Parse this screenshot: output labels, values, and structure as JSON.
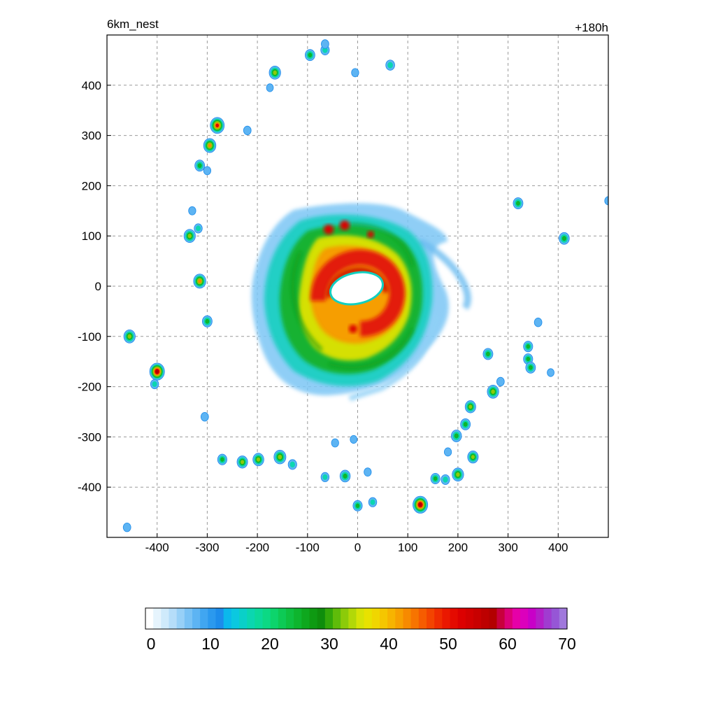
{
  "chart_data": {
    "type": "heatmap",
    "title_left": "6km_nest",
    "title_right": "+180h",
    "xlabel": "",
    "ylabel": "",
    "xlim": [
      -500,
      500
    ],
    "ylim": [
      -500,
      500
    ],
    "x_ticks": [
      -400,
      -300,
      -200,
      -100,
      0,
      100,
      200,
      300,
      400
    ],
    "y_ticks": [
      -400,
      -300,
      -200,
      -100,
      0,
      100,
      200,
      300,
      400
    ],
    "grid": true,
    "colorbar": {
      "min": 0,
      "max": 70,
      "ticks": [
        0,
        10,
        20,
        30,
        40,
        50,
        60,
        70
      ],
      "colors": [
        "#ffffff",
        "#e6f4fd",
        "#cfeafb",
        "#b5ddf9",
        "#97d0f7",
        "#79c2f5",
        "#5db4f3",
        "#40a6f1",
        "#2b99ee",
        "#1d8ceb",
        "#0bb8ec",
        "#0bc8e0",
        "#0ad0c8",
        "#0bd6b0",
        "#0bd99a",
        "#0cd984",
        "#0dd46c",
        "#0dca55",
        "#0ec040",
        "#0eb52e",
        "#0ea81e",
        "#0e9a12",
        "#0e8d0c",
        "#32a80a",
        "#5fbc0a",
        "#8ccb09",
        "#b2d808",
        "#d6e306",
        "#e8e200",
        "#f0d600",
        "#f5c600",
        "#f7b400",
        "#f7a000",
        "#f78a00",
        "#f77400",
        "#f65c00",
        "#f34400",
        "#ef2c00",
        "#ea1800",
        "#e40a00",
        "#dc0000",
        "#d20000",
        "#c80000",
        "#bd0000",
        "#b30000",
        "#c8003c",
        "#dc0078",
        "#e600a8",
        "#dc00bc",
        "#c800c8",
        "#b41ec8",
        "#a03cd0",
        "#9656d6",
        "#a078dc"
      ]
    },
    "features": {
      "eye_center": [
        -5,
        0
      ],
      "eye_radius_km": 40,
      "storm_outer_radius_km": 215,
      "rainbands": [
        {
          "x": -280,
          "y": 320,
          "value": 50
        },
        {
          "x": -295,
          "y": 280,
          "value": 40
        },
        {
          "x": -315,
          "y": 240,
          "value": 25
        },
        {
          "x": -165,
          "y": 425,
          "value": 35
        },
        {
          "x": -95,
          "y": 460,
          "value": 25
        },
        {
          "x": -65,
          "y": 470,
          "value": 18
        },
        {
          "x": -65,
          "y": 482,
          "value": 12
        },
        {
          "x": 65,
          "y": 440,
          "value": 20
        },
        {
          "x": -220,
          "y": 310,
          "value": 12
        },
        {
          "x": -335,
          "y": 100,
          "value": 35
        },
        {
          "x": -318,
          "y": 115,
          "value": 15
        },
        {
          "x": -315,
          "y": 10,
          "value": 40
        },
        {
          "x": -300,
          "y": -70,
          "value": 25
        },
        {
          "x": -455,
          "y": -100,
          "value": 35
        },
        {
          "x": -400,
          "y": -170,
          "value": 55
        },
        {
          "x": -405,
          "y": -195,
          "value": 15
        },
        {
          "x": -305,
          "y": -260,
          "value": 12
        },
        {
          "x": -270,
          "y": -345,
          "value": 22
        },
        {
          "x": -230,
          "y": -350,
          "value": 30
        },
        {
          "x": -198,
          "y": -345,
          "value": 32
        },
        {
          "x": -155,
          "y": -340,
          "value": 38
        },
        {
          "x": -130,
          "y": -355,
          "value": 18
        },
        {
          "x": -65,
          "y": -380,
          "value": 15
        },
        {
          "x": -25,
          "y": -378,
          "value": 28
        },
        {
          "x": 20,
          "y": -370,
          "value": 10
        },
        {
          "x": 0,
          "y": -437,
          "value": 22
        },
        {
          "x": 30,
          "y": -430,
          "value": 15
        },
        {
          "x": 125,
          "y": -435,
          "value": 55
        },
        {
          "x": 155,
          "y": -383,
          "value": 22
        },
        {
          "x": 175,
          "y": -385,
          "value": 18
        },
        {
          "x": 200,
          "y": -375,
          "value": 35
        },
        {
          "x": 230,
          "y": -340,
          "value": 30
        },
        {
          "x": 180,
          "y": -330,
          "value": 10
        },
        {
          "x": 197,
          "y": -298,
          "value": 28
        },
        {
          "x": 215,
          "y": -275,
          "value": 25
        },
        {
          "x": 225,
          "y": -240,
          "value": 30
        },
        {
          "x": 270,
          "y": -210,
          "value": 35
        },
        {
          "x": 285,
          "y": -190,
          "value": 12
        },
        {
          "x": 260,
          "y": -135,
          "value": 25
        },
        {
          "x": 340,
          "y": -120,
          "value": 22
        },
        {
          "x": 340,
          "y": -145,
          "value": 22
        },
        {
          "x": 345,
          "y": -162,
          "value": 25
        },
        {
          "x": 360,
          "y": -72,
          "value": 12
        },
        {
          "x": 385,
          "y": -172,
          "value": 8
        },
        {
          "x": 320,
          "y": 165,
          "value": 25
        },
        {
          "x": 412,
          "y": 95,
          "value": 28
        },
        {
          "x": 500,
          "y": 170,
          "value": 10
        },
        {
          "x": -5,
          "y": 425,
          "value": 10
        },
        {
          "x": -45,
          "y": -312,
          "value": 10
        },
        {
          "x": -8,
          "y": -305,
          "value": 8
        },
        {
          "x": -460,
          "y": -480,
          "value": 12
        },
        {
          "x": -175,
          "y": 395,
          "value": 8
        },
        {
          "x": -330,
          "y": 150,
          "value": 10
        },
        {
          "x": -300,
          "y": 230,
          "value": 10
        }
      ]
    }
  }
}
